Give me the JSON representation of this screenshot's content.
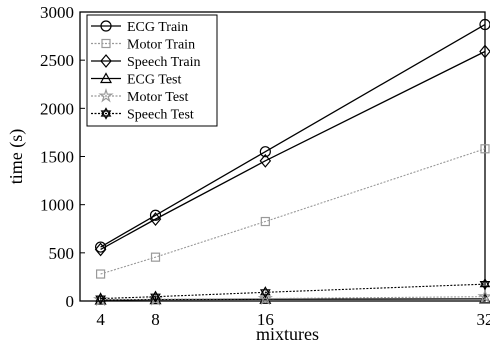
{
  "chart_data": {
    "type": "line",
    "x": [
      4,
      8,
      16,
      32
    ],
    "xlabel": "mixtures",
    "ylabel": "time (s)",
    "xlim": [
      2.5,
      32
    ],
    "ylim": [
      0,
      3000
    ],
    "xticks": [
      4,
      8,
      16,
      32
    ],
    "yticks": [
      0,
      500,
      1000,
      1500,
      2000,
      2500,
      3000
    ],
    "grid": false,
    "legend_position": "top-left",
    "series": [
      {
        "name": "ECG Train",
        "values": [
          560,
          890,
          1550,
          2870
        ],
        "color": "#000000",
        "marker": "circle",
        "dash": "solid"
      },
      {
        "name": "Motor Train",
        "values": [
          280,
          455,
          825,
          1580
        ],
        "color": "#999999",
        "marker": "square",
        "dash": "dotted"
      },
      {
        "name": "Speech Train",
        "values": [
          535,
          850,
          1455,
          2590
        ],
        "color": "#000000",
        "marker": "diamond",
        "dash": "solid"
      },
      {
        "name": "ECG Test",
        "values": [
          10,
          14,
          18,
          22
        ],
        "color": "#000000",
        "marker": "triangle",
        "dash": "solid"
      },
      {
        "name": "Motor Test",
        "values": [
          14,
          18,
          25,
          45
        ],
        "color": "#999999",
        "marker": "star",
        "dash": "dotted"
      },
      {
        "name": "Speech Test",
        "values": [
          25,
          45,
          90,
          175
        ],
        "color": "#000000",
        "marker": "hexagram",
        "dash": "dotted"
      }
    ]
  }
}
